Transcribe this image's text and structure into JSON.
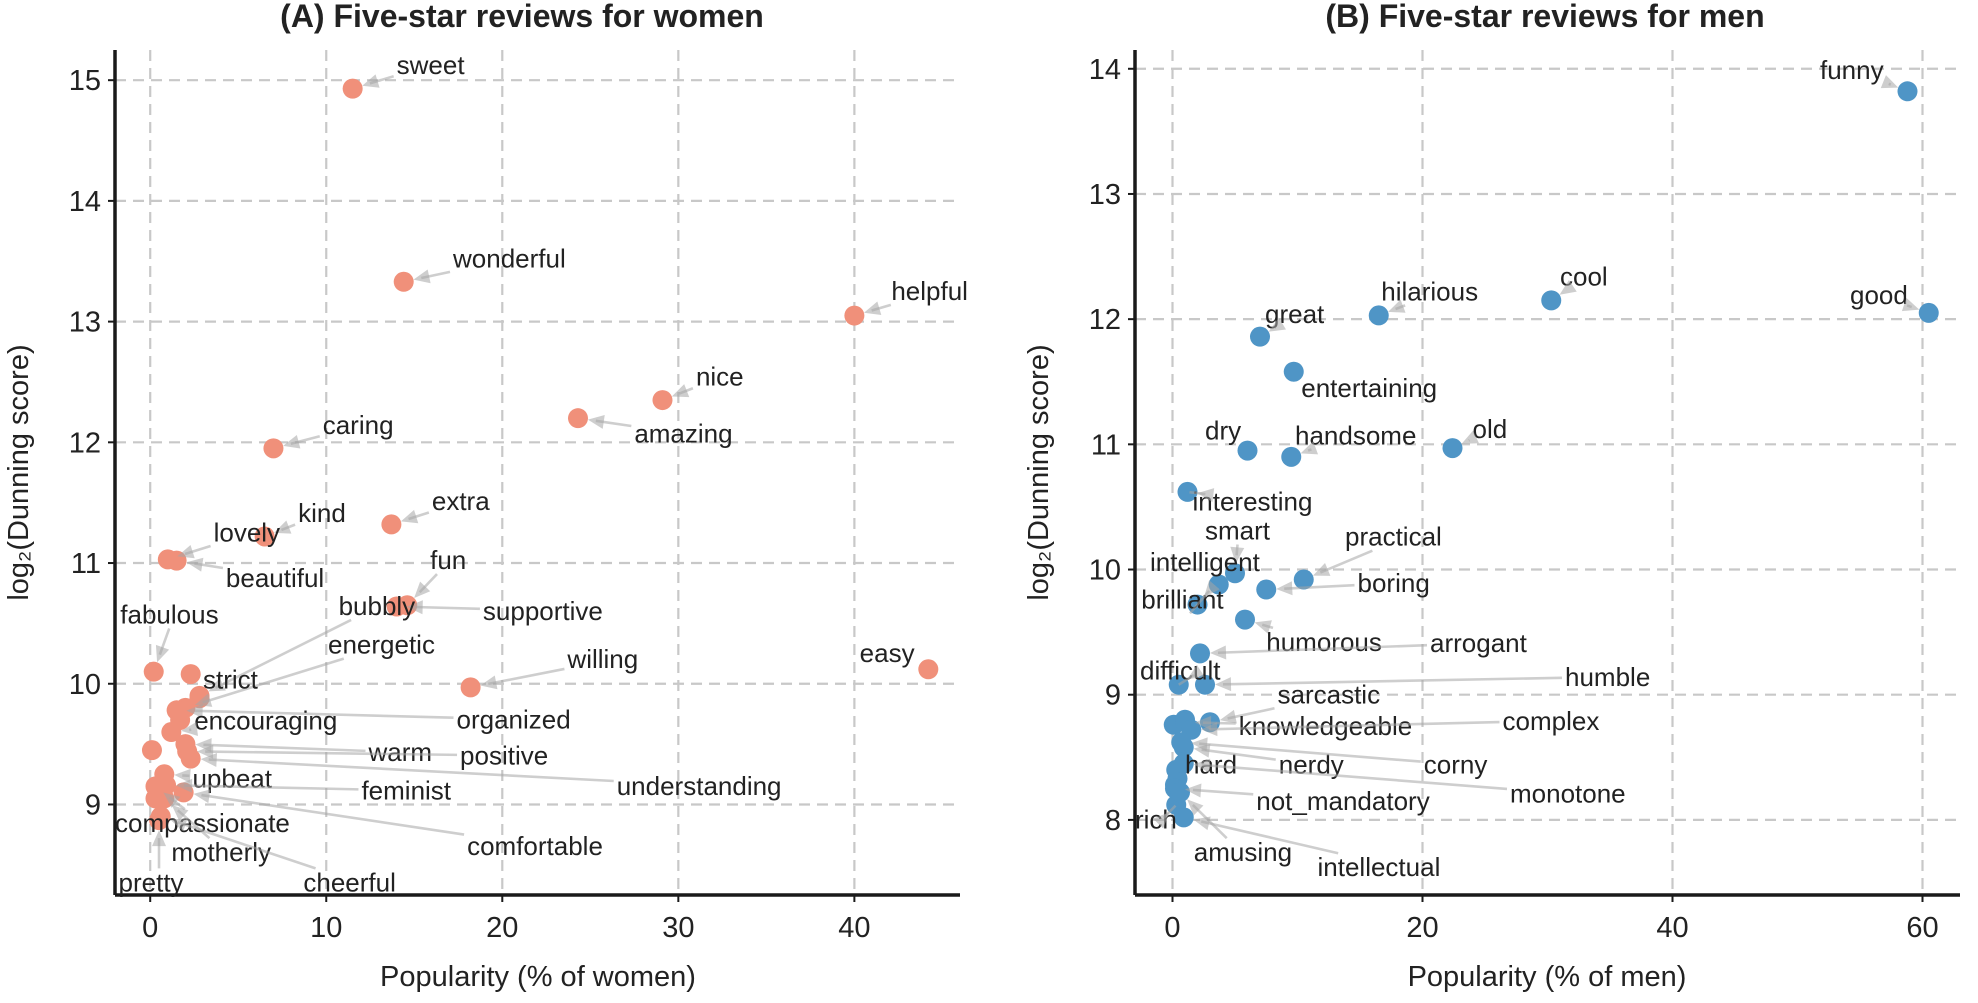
{
  "chart_data": [
    {
      "type": "scatter",
      "title": "(A) Five-star reviews for women",
      "xlabel": "Popularity (% of women)",
      "ylabel": "log₂(Dunning score)",
      "xlim": [
        -2,
        46
      ],
      "ylim": [
        8.25,
        15.25
      ],
      "xticks": [
        0,
        10,
        20,
        30,
        40
      ],
      "yticks": [
        9,
        10,
        11,
        12,
        13,
        14,
        15
      ],
      "grid": true,
      "color": "#f0907a",
      "points": [
        {
          "label": "sweet",
          "x": 11.5,
          "y": 14.93,
          "lx": 14.0,
          "ly": 15.05
        },
        {
          "label": "wonderful",
          "x": 14.4,
          "y": 13.33,
          "lx": 17.2,
          "ly": 13.45
        },
        {
          "label": "helpful",
          "x": 40.0,
          "y": 13.05,
          "lx": 42.1,
          "ly": 13.18
        },
        {
          "label": "nice",
          "x": 29.1,
          "y": 12.35,
          "lx": 31.0,
          "ly": 12.47
        },
        {
          "label": "amazing",
          "x": 24.3,
          "y": 12.2,
          "lx": 27.5,
          "ly": 12.0
        },
        {
          "label": "caring",
          "x": 7.0,
          "y": 11.95,
          "lx": 9.8,
          "ly": 12.07
        },
        {
          "label": "extra",
          "x": 13.7,
          "y": 11.32,
          "lx": 16.0,
          "ly": 11.44
        },
        {
          "label": "kind",
          "x": 6.5,
          "y": 11.22,
          "lx": 8.4,
          "ly": 11.34
        },
        {
          "label": "lovely",
          "x": 1.0,
          "y": 11.03,
          "lx": 3.6,
          "ly": 11.18
        },
        {
          "label": "beautiful",
          "x": 1.5,
          "y": 11.02,
          "lx": 4.3,
          "ly": 10.8
        },
        {
          "label": "fun",
          "x": 14.6,
          "y": 10.65,
          "lx": 15.9,
          "ly": 10.95
        },
        {
          "label": "supportive",
          "x": 14.0,
          "y": 10.64,
          "lx": 18.9,
          "ly": 10.53
        },
        {
          "label": "bubbly",
          "x": 2.8,
          "y": 9.9,
          "lx": 10.7,
          "ly": 10.57
        },
        {
          "label": "fabulous",
          "x": 0.2,
          "y": 10.1,
          "lx": -1.7,
          "ly": 10.5
        },
        {
          "label": "energetic",
          "x": 2.0,
          "y": 9.8,
          "lx": 10.1,
          "ly": 10.25
        },
        {
          "label": "strict",
          "x": 2.3,
          "y": 10.08,
          "lx": 3.0,
          "ly": 9.96
        },
        {
          "label": "willing",
          "x": 18.2,
          "y": 9.97,
          "lx": 23.7,
          "ly": 10.13
        },
        {
          "label": "easy",
          "x": 44.2,
          "y": 10.12,
          "lx": 40.3,
          "ly": 10.18
        },
        {
          "label": "organized",
          "x": 1.5,
          "y": 9.78,
          "lx": 17.4,
          "ly": 9.63
        },
        {
          "label": "encouraging",
          "x": 1.2,
          "y": 9.6,
          "lx": 2.5,
          "ly": 9.62
        },
        {
          "label": "warm",
          "x": 2.0,
          "y": 9.5,
          "lx": 12.4,
          "ly": 9.36
        },
        {
          "label": "positive",
          "x": 2.1,
          "y": 9.44,
          "lx": 17.6,
          "ly": 9.33
        },
        {
          "label": "understanding",
          "x": 2.3,
          "y": 9.38,
          "lx": 26.5,
          "ly": 9.08
        },
        {
          "label": "upbeat",
          "x": 0.8,
          "y": 9.25,
          "lx": 2.4,
          "ly": 9.14
        },
        {
          "label": "feminist",
          "x": 0.9,
          "y": 9.16,
          "lx": 12.0,
          "ly": 9.04
        },
        {
          "label": "compassionate",
          "x": 0.3,
          "y": 9.15,
          "lx": -2.0,
          "ly": 8.77
        },
        {
          "label": "motherly",
          "x": 0.8,
          "y": 9.05,
          "lx": 1.2,
          "ly": 8.53
        },
        {
          "label": "comfortable",
          "x": 1.9,
          "y": 9.1,
          "lx": 18.0,
          "ly": 8.58
        },
        {
          "label": "pretty",
          "x": 0.5,
          "y": 8.87,
          "lx": -1.8,
          "ly": 8.28
        },
        {
          "label": "cheerful",
          "x": 0.6,
          "y": 8.9,
          "lx": 8.7,
          "ly": 8.28
        }
      ],
      "extra_points": [
        {
          "x": 0.1,
          "y": 9.45
        },
        {
          "x": 0.3,
          "y": 9.05
        },
        {
          "x": 2.8,
          "y": 9.88
        },
        {
          "x": 1.7,
          "y": 9.7
        }
      ]
    },
    {
      "type": "scatter",
      "title": "(B) Five-star reviews for men",
      "xlabel": "Popularity (% of men)",
      "ylabel": "log₂(Dunning score)",
      "xlim": [
        -3,
        63
      ],
      "ylim": [
        7.4,
        14.15
      ],
      "xticks": [
        0,
        20,
        40,
        60
      ],
      "yticks": [
        8,
        9,
        10,
        11,
        12,
        13,
        14
      ],
      "grid": true,
      "color": "#4f95c6",
      "points": [
        {
          "label": "funny",
          "x": 58.8,
          "y": 13.82,
          "lx": 51.8,
          "ly": 13.92
        },
        {
          "label": "good",
          "x": 60.5,
          "y": 12.05,
          "lx": 54.2,
          "ly": 12.12
        },
        {
          "label": "cool",
          "x": 30.3,
          "y": 12.15,
          "lx": 31.0,
          "ly": 12.27
        },
        {
          "label": "hilarious",
          "x": 16.5,
          "y": 12.03,
          "lx": 16.7,
          "ly": 12.15
        },
        {
          "label": "great",
          "x": 7.0,
          "y": 11.86,
          "lx": 7.4,
          "ly": 11.97
        },
        {
          "label": "entertaining",
          "x": 9.7,
          "y": 11.58,
          "lx": 10.3,
          "ly": 11.38
        },
        {
          "label": "dry",
          "x": 6.0,
          "y": 10.95,
          "lx": 2.6,
          "ly": 11.04
        },
        {
          "label": "handsome",
          "x": 9.5,
          "y": 10.9,
          "lx": 9.8,
          "ly": 11.0
        },
        {
          "label": "old",
          "x": 22.4,
          "y": 10.97,
          "lx": 24.0,
          "ly": 11.05
        },
        {
          "label": "interesting",
          "x": 1.2,
          "y": 10.62,
          "lx": 1.6,
          "ly": 10.47
        },
        {
          "label": "smart",
          "x": 5.0,
          "y": 9.97,
          "lx": 2.6,
          "ly": 10.24
        },
        {
          "label": "practical",
          "x": 10.5,
          "y": 9.92,
          "lx": 13.8,
          "ly": 10.19
        },
        {
          "label": "intelligent",
          "x": 3.7,
          "y": 9.88,
          "lx": -1.8,
          "ly": 9.99
        },
        {
          "label": "boring",
          "x": 7.5,
          "y": 9.84,
          "lx": 14.8,
          "ly": 9.82
        },
        {
          "label": "brilliant",
          "x": 2.0,
          "y": 9.72,
          "lx": -2.5,
          "ly": 9.69
        },
        {
          "label": "humorous",
          "x": 5.8,
          "y": 9.6,
          "lx": 7.5,
          "ly": 9.35
        },
        {
          "label": "arrogant",
          "x": 2.2,
          "y": 9.33,
          "lx": 20.6,
          "ly": 9.34
        },
        {
          "label": "difficult",
          "x": 0.5,
          "y": 9.08,
          "lx": -2.6,
          "ly": 9.12
        },
        {
          "label": "humble",
          "x": 2.6,
          "y": 9.08,
          "lx": 31.4,
          "ly": 9.07
        },
        {
          "label": "sarcastic",
          "x": 3.0,
          "y": 8.78,
          "lx": 8.4,
          "ly": 8.93
        },
        {
          "label": "knowledgeable",
          "x": 1.0,
          "y": 8.78,
          "lx": 5.3,
          "ly": 8.68
        },
        {
          "label": "complex",
          "x": 1.5,
          "y": 8.72,
          "lx": 26.4,
          "ly": 8.72
        },
        {
          "label": "hard",
          "x": 0.3,
          "y": 8.4,
          "lx": 1.0,
          "ly": 8.37
        },
        {
          "label": "nerdy",
          "x": 0.9,
          "y": 8.58,
          "lx": 8.5,
          "ly": 8.37
        },
        {
          "label": "corny",
          "x": 0.7,
          "y": 8.62,
          "lx": 20.1,
          "ly": 8.37
        },
        {
          "label": "monotone",
          "x": 0.9,
          "y": 8.45,
          "lx": 27.0,
          "ly": 8.14
        },
        {
          "label": "not_mandatory",
          "x": 0.2,
          "y": 8.25,
          "lx": 6.7,
          "ly": 8.08
        },
        {
          "label": "rich",
          "x": 0.3,
          "y": 8.12,
          "lx": -3.0,
          "ly": 7.93
        },
        {
          "label": "amusing",
          "x": 0.6,
          "y": 8.22,
          "lx": 1.7,
          "ly": 7.67
        },
        {
          "label": "intellectual",
          "x": 0.9,
          "y": 8.02,
          "lx": 11.6,
          "ly": 7.55
        }
      ],
      "extra_points": [
        {
          "x": 0.1,
          "y": 8.76
        },
        {
          "x": 0.2,
          "y": 8.28
        },
        {
          "x": 0.4,
          "y": 8.33
        },
        {
          "x": 1.0,
          "y": 8.8
        }
      ]
    }
  ]
}
